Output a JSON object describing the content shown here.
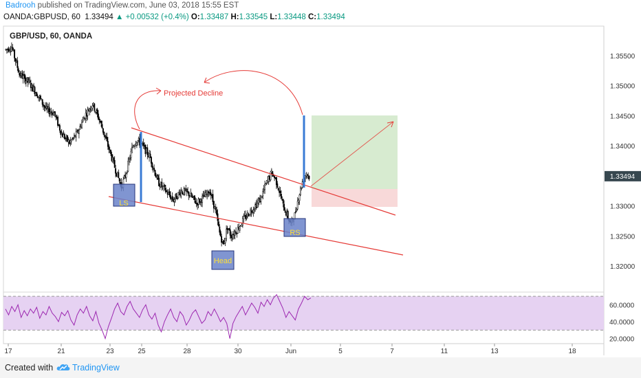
{
  "header": {
    "author": "Badrooh",
    "published_text": " published on TradingView.com, June 03, 2018 15:55 EST",
    "symbol": "OANDA:GBPUSD, 60",
    "last": "1.33494",
    "change": "▲ +0.00532 (+0.4%)",
    "o_label": "O:",
    "o_value": "1.33487",
    "h_label": "H:",
    "h_value": "1.33545",
    "l_label": "L:",
    "l_value": "1.33448",
    "c_label": "C:",
    "c_value": "1.33494"
  },
  "chart_data": {
    "type": "candlestick",
    "title": "GBP/USD, 60, OANDA",
    "price_axis": {
      "ticks": [
        "1.35500",
        "1.35000",
        "1.34500",
        "1.34000",
        "1.33000",
        "1.32500",
        "1.32000"
      ],
      "current_price": "1.33494",
      "ylim": [
        1.3165,
        1.3585
      ]
    },
    "time_axis": {
      "ticks": [
        "17",
        "21",
        "23",
        "25",
        "28",
        "30",
        "Jun",
        "5",
        "7",
        "11",
        "13",
        "18"
      ]
    },
    "price_path": [
      {
        "t": 0,
        "p": 1.356
      },
      {
        "t": 6,
        "p": 1.3565
      },
      {
        "t": 14,
        "p": 1.352
      },
      {
        "t": 24,
        "p": 1.3505
      },
      {
        "t": 33,
        "p": 1.3485
      },
      {
        "t": 42,
        "p": 1.346
      },
      {
        "t": 50,
        "p": 1.3455
      },
      {
        "t": 58,
        "p": 1.342
      },
      {
        "t": 66,
        "p": 1.3405
      },
      {
        "t": 74,
        "p": 1.342
      },
      {
        "t": 82,
        "p": 1.345
      },
      {
        "t": 90,
        "p": 1.347
      },
      {
        "t": 98,
        "p": 1.344
      },
      {
        "t": 106,
        "p": 1.34
      },
      {
        "t": 114,
        "p": 1.336
      },
      {
        "t": 120,
        "p": 1.3332
      },
      {
        "t": 124,
        "p": 1.335
      },
      {
        "t": 128,
        "p": 1.3375
      },
      {
        "t": 132,
        "p": 1.34
      },
      {
        "t": 136,
        "p": 1.341
      },
      {
        "t": 142,
        "p": 1.34
      },
      {
        "t": 150,
        "p": 1.338
      },
      {
        "t": 158,
        "p": 1.334
      },
      {
        "t": 166,
        "p": 1.3325
      },
      {
        "t": 174,
        "p": 1.331
      },
      {
        "t": 182,
        "p": 1.3325
      },
      {
        "t": 190,
        "p": 1.332
      },
      {
        "t": 198,
        "p": 1.3305
      },
      {
        "t": 206,
        "p": 1.3315
      },
      {
        "t": 212,
        "p": 1.3325
      },
      {
        "t": 218,
        "p": 1.329
      },
      {
        "t": 222,
        "p": 1.3255
      },
      {
        "t": 226,
        "p": 1.3235
      },
      {
        "t": 230,
        "p": 1.3265
      },
      {
        "t": 234,
        "p": 1.325
      },
      {
        "t": 240,
        "p": 1.326
      },
      {
        "t": 248,
        "p": 1.328
      },
      {
        "t": 256,
        "p": 1.3295
      },
      {
        "t": 264,
        "p": 1.331
      },
      {
        "t": 270,
        "p": 1.3335
      },
      {
        "t": 276,
        "p": 1.3355
      },
      {
        "t": 280,
        "p": 1.3345
      },
      {
        "t": 284,
        "p": 1.3325
      },
      {
        "t": 288,
        "p": 1.33
      },
      {
        "t": 292,
        "p": 1.3285
      },
      {
        "t": 296,
        "p": 1.327
      },
      {
        "t": 300,
        "p": 1.3285
      },
      {
        "t": 304,
        "p": 1.3315
      },
      {
        "t": 308,
        "p": 1.334
      },
      {
        "t": 312,
        "p": 1.3355
      },
      {
        "t": 315,
        "p": 1.3349
      }
    ],
    "annotations": [
      {
        "label": "LS",
        "kind": "box"
      },
      {
        "label": "Head",
        "kind": "box"
      },
      {
        "label": "RS",
        "kind": "box"
      },
      {
        "label": "Projected Decline",
        "kind": "text"
      }
    ],
    "target_zone": {
      "top": 1.345,
      "entry": 1.3328,
      "stop": 1.33
    },
    "rsi": {
      "ticks": [
        "60.0000",
        "40.0000",
        "20.0000"
      ],
      "upper_band": 70,
      "lower_band": 30,
      "ylim": [
        14,
        75
      ],
      "values": [
        55,
        48,
        58,
        52,
        60,
        45,
        53,
        47,
        55,
        50,
        57,
        44,
        52,
        48,
        58,
        50,
        46,
        40,
        51,
        47,
        53,
        42,
        36,
        48,
        55,
        50,
        58,
        47,
        41,
        52,
        38,
        30,
        20,
        34,
        44,
        55,
        62,
        52,
        48,
        58,
        64,
        55,
        50,
        45,
        54,
        60,
        48,
        43,
        50,
        36,
        28,
        40,
        48,
        55,
        45,
        40,
        52,
        47,
        36,
        42,
        50,
        54,
        46,
        38,
        42,
        52,
        47,
        55,
        48,
        40,
        45,
        38,
        20,
        38,
        46,
        52,
        58,
        48,
        55,
        62,
        57,
        50,
        63,
        58,
        66,
        60,
        68,
        72,
        64,
        56,
        45,
        52,
        47,
        42,
        55,
        62,
        70,
        66,
        68
      ]
    },
    "colors": {
      "up": "#ffffff",
      "down": "#000000",
      "trendline": "#e53935",
      "pole": "#3a7bd5",
      "box_fill": "#6a82c9",
      "box_text": "#ffe135",
      "rsi_line": "#9c27b0",
      "rsi_band": "#e6d2f2",
      "profit_zone": "#d7ebd0",
      "loss_zone": "#f8d9d9",
      "price_label": "#37474f"
    }
  },
  "footer": {
    "created_with": "Created with",
    "brand": "TradingView"
  }
}
